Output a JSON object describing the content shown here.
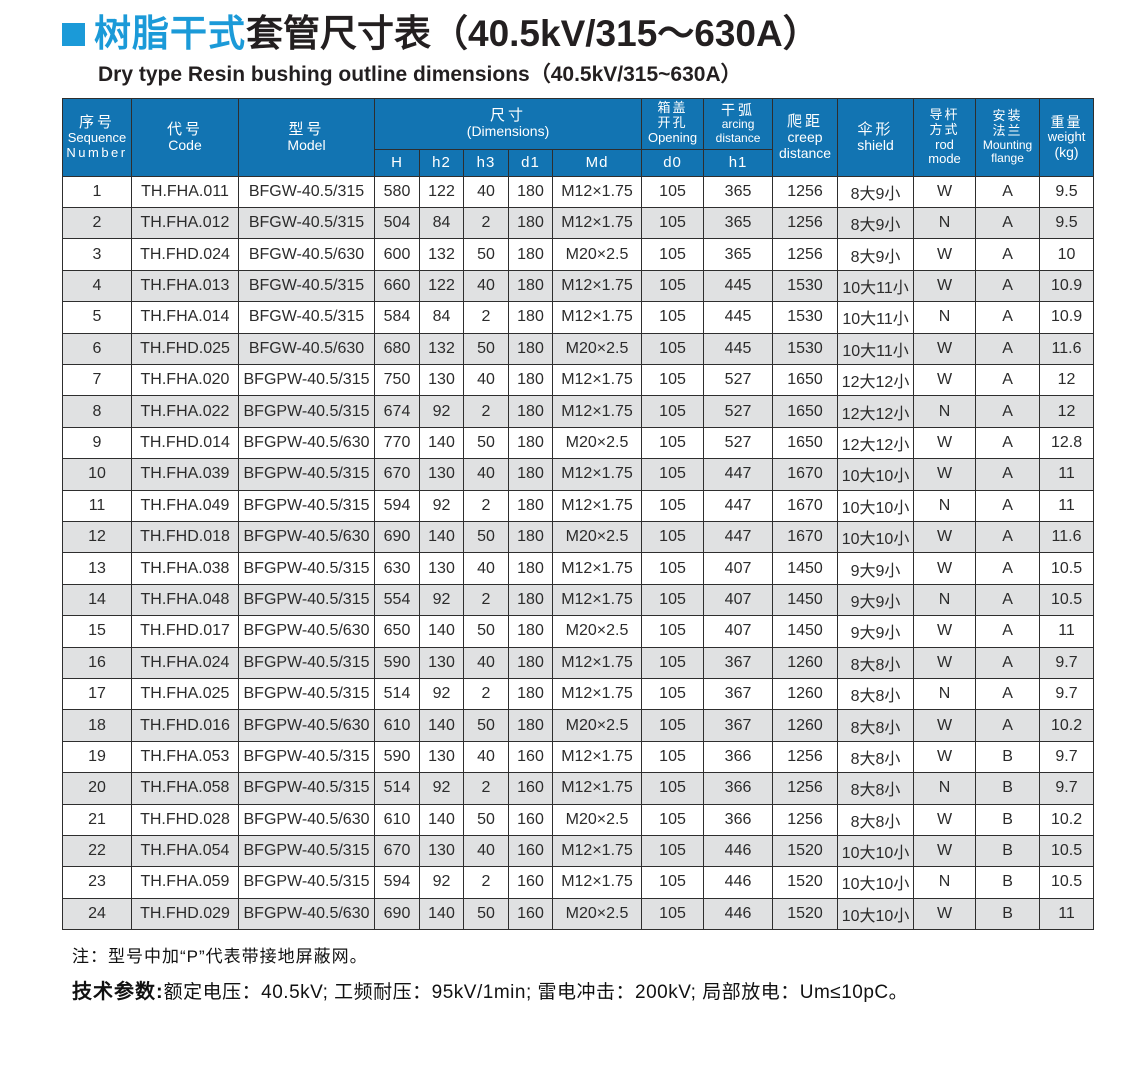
{
  "page": {
    "title_zh_highlight": "树脂干式",
    "title_zh_rest": "套管尺寸表（40.5kV/315～630A）",
    "title_en": "Dry type Resin bushing outline dimensions（40.5kV/315~630A）"
  },
  "colors": {
    "accent_blue": "#1b9ad8",
    "header_blue": "#1274b2",
    "row_alt_gray": "#e0e1e2"
  },
  "table": {
    "header": {
      "seq_zh": "序号",
      "seq_en1": "Sequence",
      "seq_en2": "Number",
      "code_zh": "代号",
      "code_en": "Code",
      "model_zh": "型号",
      "model_en": "Model",
      "dim_zh": "尺寸",
      "dim_en": "(Dimensions)",
      "dim_subcols": [
        "H",
        "h2",
        "h3",
        "d1",
        "Md"
      ],
      "opening_zh1": "箱盖",
      "opening_zh2": "开孔",
      "opening_en": "Opening",
      "opening_sub": "d0",
      "arcing_zh": "干弧",
      "arcing_en1": "arcing",
      "arcing_en2": "distance",
      "arcing_sub": "h1",
      "creep_zh": "爬距",
      "creep_en1": "creep",
      "creep_en2": "distance",
      "shield_zh": "伞形",
      "shield_en": "shield",
      "rod_zh1": "导杆",
      "rod_zh2": "方式",
      "rod_en1": "rod",
      "rod_en2": "mode",
      "flange_zh1": "安装",
      "flange_zh2": "法兰",
      "flange_en1": "Mounting",
      "flange_en2": "flange",
      "weight_zh": "重量",
      "weight_en": "weight",
      "weight_unit": "(kg)"
    },
    "rows": [
      [
        "1",
        "TH.FHA.011",
        "BFGW-40.5/315",
        "580",
        "122",
        "40",
        "180",
        "M12×1.75",
        "105",
        "365",
        "1256",
        "8大9小",
        "W",
        "A",
        "9.5"
      ],
      [
        "2",
        "TH.FHA.012",
        "BFGW-40.5/315",
        "504",
        "84",
        "2",
        "180",
        "M12×1.75",
        "105",
        "365",
        "1256",
        "8大9小",
        "N",
        "A",
        "9.5"
      ],
      [
        "3",
        "TH.FHD.024",
        "BFGW-40.5/630",
        "600",
        "132",
        "50",
        "180",
        "M20×2.5",
        "105",
        "365",
        "1256",
        "8大9小",
        "W",
        "A",
        "10"
      ],
      [
        "4",
        "TH.FHA.013",
        "BFGW-40.5/315",
        "660",
        "122",
        "40",
        "180",
        "M12×1.75",
        "105",
        "445",
        "1530",
        "10大11小",
        "W",
        "A",
        "10.9"
      ],
      [
        "5",
        "TH.FHA.014",
        "BFGW-40.5/315",
        "584",
        "84",
        "2",
        "180",
        "M12×1.75",
        "105",
        "445",
        "1530",
        "10大11小",
        "N",
        "A",
        "10.9"
      ],
      [
        "6",
        "TH.FHD.025",
        "BFGW-40.5/630",
        "680",
        "132",
        "50",
        "180",
        "M20×2.5",
        "105",
        "445",
        "1530",
        "10大11小",
        "W",
        "A",
        "11.6"
      ],
      [
        "7",
        "TH.FHA.020",
        "BFGPW-40.5/315",
        "750",
        "130",
        "40",
        "180",
        "M12×1.75",
        "105",
        "527",
        "1650",
        "12大12小",
        "W",
        "A",
        "12"
      ],
      [
        "8",
        "TH.FHA.022",
        "BFGPW-40.5/315",
        "674",
        "92",
        "2",
        "180",
        "M12×1.75",
        "105",
        "527",
        "1650",
        "12大12小",
        "N",
        "A",
        "12"
      ],
      [
        "9",
        "TH.FHD.014",
        "BFGPW-40.5/630",
        "770",
        "140",
        "50",
        "180",
        "M20×2.5",
        "105",
        "527",
        "1650",
        "12大12小",
        "W",
        "A",
        "12.8"
      ],
      [
        "10",
        "TH.FHA.039",
        "BFGPW-40.5/315",
        "670",
        "130",
        "40",
        "180",
        "M12×1.75",
        "105",
        "447",
        "1670",
        "10大10小",
        "W",
        "A",
        "11"
      ],
      [
        "11",
        "TH.FHA.049",
        "BFGPW-40.5/315",
        "594",
        "92",
        "2",
        "180",
        "M12×1.75",
        "105",
        "447",
        "1670",
        "10大10小",
        "N",
        "A",
        "11"
      ],
      [
        "12",
        "TH.FHD.018",
        "BFGPW-40.5/630",
        "690",
        "140",
        "50",
        "180",
        "M20×2.5",
        "105",
        "447",
        "1670",
        "10大10小",
        "W",
        "A",
        "11.6"
      ],
      [
        "13",
        "TH.FHA.038",
        "BFGPW-40.5/315",
        "630",
        "130",
        "40",
        "180",
        "M12×1.75",
        "105",
        "407",
        "1450",
        "9大9小",
        "W",
        "A",
        "10.5"
      ],
      [
        "14",
        "TH.FHA.048",
        "BFGPW-40.5/315",
        "554",
        "92",
        "2",
        "180",
        "M12×1.75",
        "105",
        "407",
        "1450",
        "9大9小",
        "N",
        "A",
        "10.5"
      ],
      [
        "15",
        "TH.FHD.017",
        "BFGPW-40.5/630",
        "650",
        "140",
        "50",
        "180",
        "M20×2.5",
        "105",
        "407",
        "1450",
        "9大9小",
        "W",
        "A",
        "11"
      ],
      [
        "16",
        "TH.FHA.024",
        "BFGPW-40.5/315",
        "590",
        "130",
        "40",
        "180",
        "M12×1.75",
        "105",
        "367",
        "1260",
        "8大8小",
        "W",
        "A",
        "9.7"
      ],
      [
        "17",
        "TH.FHA.025",
        "BFGPW-40.5/315",
        "514",
        "92",
        "2",
        "180",
        "M12×1.75",
        "105",
        "367",
        "1260",
        "8大8小",
        "N",
        "A",
        "9.7"
      ],
      [
        "18",
        "TH.FHD.016",
        "BFGPW-40.5/630",
        "610",
        "140",
        "50",
        "180",
        "M20×2.5",
        "105",
        "367",
        "1260",
        "8大8小",
        "W",
        "A",
        "10.2"
      ],
      [
        "19",
        "TH.FHA.053",
        "BFGPW-40.5/315",
        "590",
        "130",
        "40",
        "160",
        "M12×1.75",
        "105",
        "366",
        "1256",
        "8大8小",
        "W",
        "B",
        "9.7"
      ],
      [
        "20",
        "TH.FHA.058",
        "BFGPW-40.5/315",
        "514",
        "92",
        "2",
        "160",
        "M12×1.75",
        "105",
        "366",
        "1256",
        "8大8小",
        "N",
        "B",
        "9.7"
      ],
      [
        "21",
        "TH.FHD.028",
        "BFGPW-40.5/630",
        "610",
        "140",
        "50",
        "160",
        "M20×2.5",
        "105",
        "366",
        "1256",
        "8大8小",
        "W",
        "B",
        "10.2"
      ],
      [
        "22",
        "TH.FHA.054",
        "BFGPW-40.5/315",
        "670",
        "130",
        "40",
        "160",
        "M12×1.75",
        "105",
        "446",
        "1520",
        "10大10小",
        "W",
        "B",
        "10.5"
      ],
      [
        "23",
        "TH.FHA.059",
        "BFGPW-40.5/315",
        "594",
        "92",
        "2",
        "160",
        "M12×1.75",
        "105",
        "446",
        "1520",
        "10大10小",
        "N",
        "B",
        "10.5"
      ],
      [
        "24",
        "TH.FHD.029",
        "BFGPW-40.5/630",
        "690",
        "140",
        "50",
        "160",
        "M20×2.5",
        "105",
        "446",
        "1520",
        "10大10小",
        "W",
        "B",
        "11"
      ]
    ]
  },
  "notes": {
    "note1": "注：型号中加“P”代表带接地屏蔽网。",
    "note2_label": "技术参数:",
    "note2_text": "额定电压：40.5kV; 工频耐压：95kV/1min; 雷电冲击：200kV; 局部放电：Um≤10pC。"
  }
}
